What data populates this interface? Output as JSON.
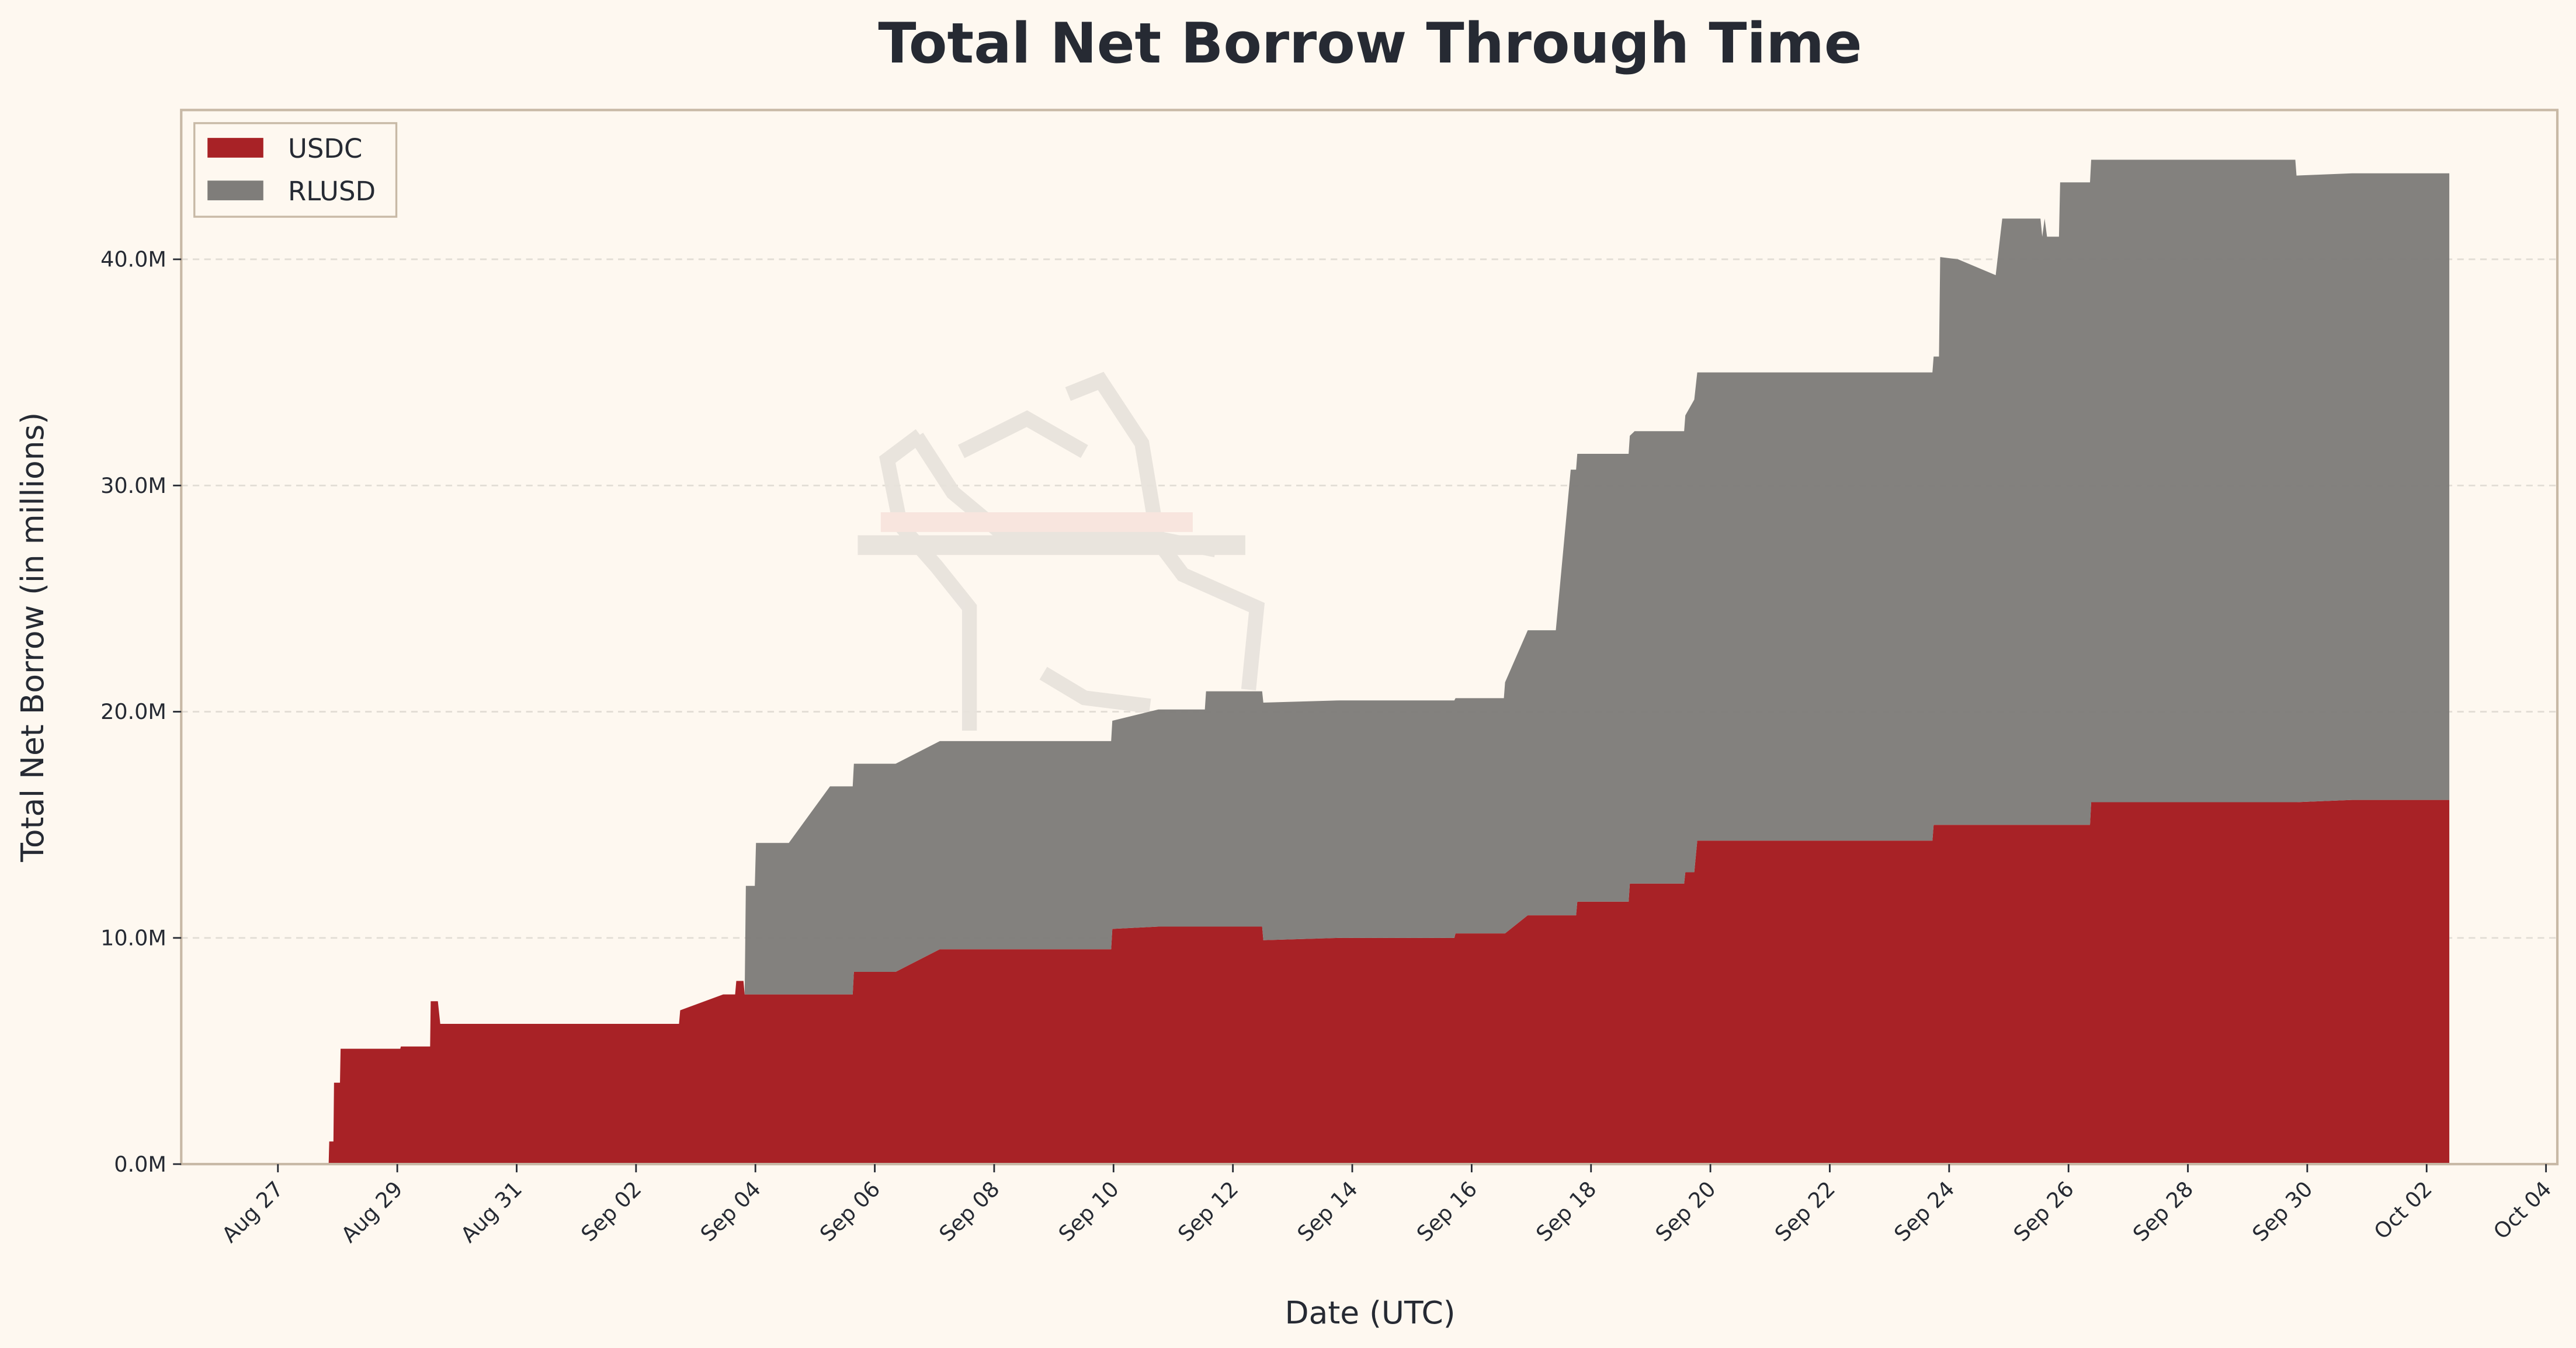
{
  "chart_data": {
    "type": "area",
    "stacked": true,
    "title": "Total Net Borrow Through Time",
    "xlabel": "Date (UTC)",
    "ylabel": "Total Net Borrow (in millions)",
    "x_unit": "days since Aug 27 00:00 UTC",
    "xlim": [
      -1.62,
      38.19
    ],
    "ylim": [
      0,
      46.6
    ],
    "grid": "horizontal dashed",
    "legend_position": "top-left",
    "x_ticks": [
      0,
      2,
      4,
      6,
      8,
      10,
      12,
      14,
      16,
      18,
      20,
      22,
      24,
      26,
      28,
      30,
      32,
      34,
      36,
      38
    ],
    "x_tick_labels": [
      "Aug 27",
      "Aug 29",
      "Aug 31",
      "Sep 02",
      "Sep 04",
      "Sep 06",
      "Sep 08",
      "Sep 10",
      "Sep 12",
      "Sep 14",
      "Sep 16",
      "Sep 18",
      "Sep 20",
      "Sep 22",
      "Sep 24",
      "Sep 26",
      "Sep 28",
      "Sep 30",
      "Oct 02",
      "Oct 04"
    ],
    "y_ticks": [
      0,
      10,
      20,
      30,
      40
    ],
    "y_tick_labels": [
      "0.0M",
      "10.0M",
      "20.0M",
      "30.0M",
      "40.0M"
    ],
    "series": [
      {
        "name": "USDC",
        "color": "#a82226"
      },
      {
        "name": "RLUSD",
        "color": "#7f7d7a"
      }
    ],
    "point_columns": [
      "day",
      "USDC (M)",
      "RLUSD (M)"
    ],
    "points": [
      [
        0.85,
        0,
        0
      ],
      [
        0.86,
        1.0,
        0
      ],
      [
        0.93,
        1.0,
        0
      ],
      [
        0.94,
        3.6,
        0
      ],
      [
        1.04,
        3.6,
        0
      ],
      [
        1.05,
        5.1,
        0
      ],
      [
        2.05,
        5.1,
        0
      ],
      [
        2.06,
        5.2,
        0
      ],
      [
        2.55,
        5.2,
        0
      ],
      [
        2.56,
        7.2,
        0
      ],
      [
        2.68,
        7.2,
        0
      ],
      [
        2.72,
        6.2,
        0
      ],
      [
        6.72,
        6.2,
        0
      ],
      [
        6.74,
        6.8,
        0
      ],
      [
        7.46,
        7.5,
        0
      ],
      [
        7.66,
        7.5,
        0
      ],
      [
        7.68,
        8.1,
        0
      ],
      [
        7.8,
        8.1,
        0
      ],
      [
        7.82,
        7.5,
        0
      ],
      [
        7.84,
        7.5,
        4.8
      ],
      [
        7.99,
        7.5,
        4.8
      ],
      [
        8.01,
        7.5,
        6.7
      ],
      [
        8.56,
        7.5,
        6.7
      ],
      [
        9.25,
        7.5,
        9.2
      ],
      [
        9.63,
        7.5,
        9.2
      ],
      [
        9.65,
        8.5,
        9.2
      ],
      [
        10.35,
        8.5,
        9.2
      ],
      [
        11.09,
        9.5,
        9.2
      ],
      [
        13.96,
        9.5,
        9.2
      ],
      [
        13.98,
        10.4,
        9.2
      ],
      [
        14.75,
        10.5,
        9.6
      ],
      [
        15.53,
        10.5,
        9.6
      ],
      [
        15.55,
        10.5,
        10.4
      ],
      [
        16.49,
        10.5,
        10.4
      ],
      [
        16.51,
        9.9,
        10.5
      ],
      [
        17.78,
        10.0,
        10.5
      ],
      [
        19.71,
        10.0,
        10.5
      ],
      [
        19.73,
        10.2,
        10.4
      ],
      [
        20.54,
        10.2,
        10.4
      ],
      [
        20.56,
        10.2,
        11.1
      ],
      [
        20.94,
        11.0,
        12.6
      ],
      [
        21.41,
        11.0,
        12.6
      ],
      [
        21.66,
        11.0,
        19.7
      ],
      [
        21.75,
        11.0,
        19.7
      ],
      [
        21.77,
        11.6,
        19.8
      ],
      [
        22.63,
        11.6,
        19.8
      ],
      [
        22.65,
        12.4,
        19.8
      ],
      [
        22.73,
        12.4,
        20.0
      ],
      [
        23.56,
        12.4,
        20.0
      ],
      [
        23.58,
        12.9,
        20.2
      ],
      [
        23.73,
        12.9,
        20.9
      ],
      [
        23.78,
        14.3,
        20.7
      ],
      [
        27.72,
        14.3,
        20.7
      ],
      [
        27.74,
        15.0,
        20.7
      ],
      [
        27.83,
        15.0,
        20.7
      ],
      [
        27.85,
        15.0,
        25.1
      ],
      [
        28.15,
        15.0,
        25.0
      ],
      [
        28.78,
        15.0,
        24.3
      ],
      [
        28.89,
        15.0,
        26.8
      ],
      [
        29.53,
        15.0,
        26.8
      ],
      [
        29.56,
        15.0,
        26.0
      ],
      [
        29.6,
        15.0,
        26.8
      ],
      [
        29.64,
        15.0,
        26.0
      ],
      [
        29.84,
        15.0,
        26.0
      ],
      [
        29.86,
        15.0,
        28.4
      ],
      [
        30.36,
        15.0,
        28.4
      ],
      [
        30.38,
        16.0,
        28.4
      ],
      [
        33.8,
        16.0,
        28.4
      ],
      [
        33.82,
        16.0,
        27.7
      ],
      [
        34.75,
        16.1,
        27.7
      ],
      [
        36.38,
        16.1,
        27.7
      ]
    ]
  }
}
